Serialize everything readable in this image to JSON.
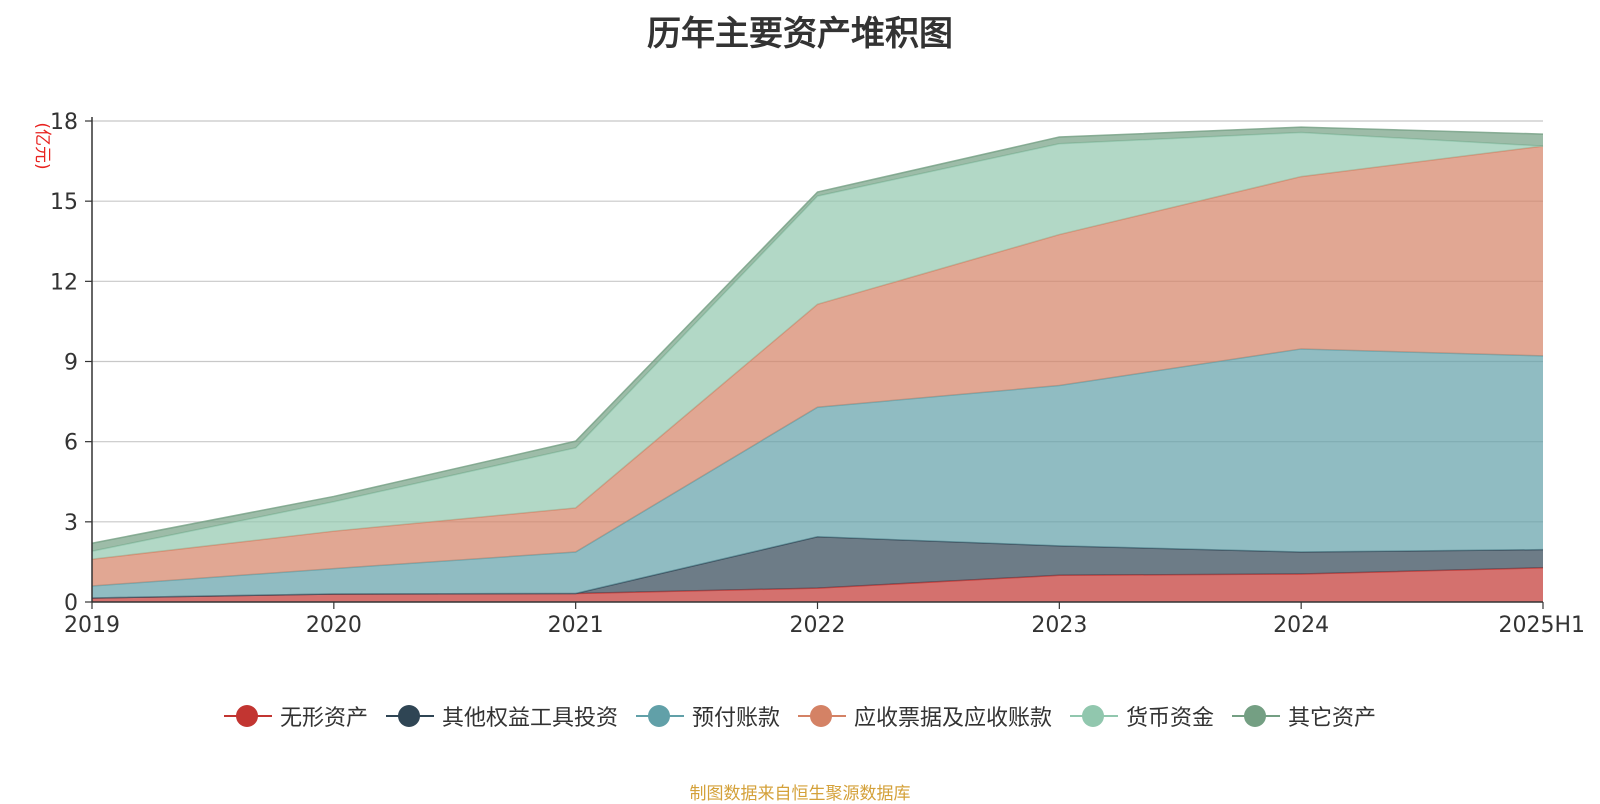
{
  "chart_data": {
    "type": "area",
    "stacked": true,
    "title": "历年主要资产堆积图",
    "unit_label": "(亿元)",
    "categories": [
      "2019",
      "2020",
      "2021",
      "2022",
      "2023",
      "2024",
      "2025H1"
    ],
    "ylim": [
      0,
      18
    ],
    "yticks": [
      0,
      3,
      6,
      9,
      12,
      15,
      18
    ],
    "grid": true,
    "legend_position": "bottom",
    "series": [
      {
        "name": "无形资产",
        "color": "#c23531",
        "values": [
          0.15,
          0.3,
          0.32,
          0.52,
          1.0,
          1.05,
          1.28
        ]
      },
      {
        "name": "其他权益工具投资",
        "color": "#2f4554",
        "values": [
          0.0,
          0.0,
          0.0,
          1.92,
          1.1,
          0.82,
          0.68
        ]
      },
      {
        "name": "预付账款",
        "color": "#61a0a8",
        "values": [
          0.45,
          0.95,
          1.55,
          4.85,
          6.0,
          7.6,
          7.25
        ]
      },
      {
        "name": "应收票据及应收账款",
        "color": "#d48265",
        "values": [
          1.0,
          1.4,
          1.65,
          3.85,
          5.65,
          6.45,
          7.85
        ]
      },
      {
        "name": "货币资金",
        "color": "#91c7ae",
        "values": [
          0.3,
          1.1,
          2.25,
          4.05,
          3.4,
          1.65,
          0.0
        ]
      },
      {
        "name": "其它资产",
        "color": "#749f83",
        "values": [
          0.3,
          0.2,
          0.25,
          0.15,
          0.25,
          0.2,
          0.45
        ]
      }
    ]
  },
  "source_note": "制图数据来自恒生聚源数据库"
}
